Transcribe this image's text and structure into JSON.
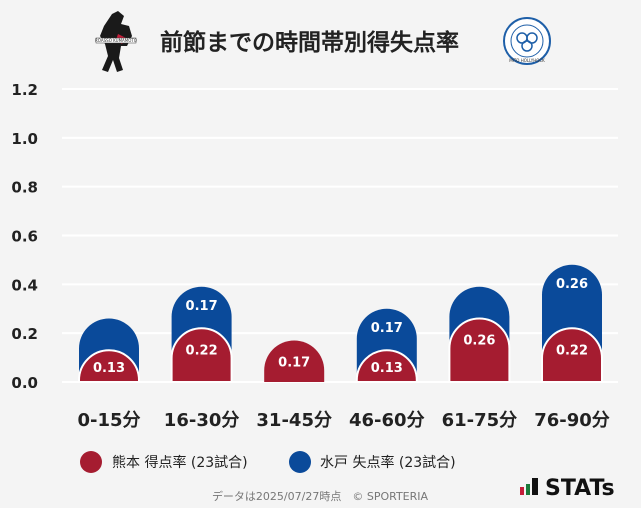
{
  "header": {
    "title": "前節までの時間帯別得失点率",
    "home_logo_text": "ROASSO KUMAMOTO",
    "away_logo_text": "MITO HOLLYHOCK"
  },
  "legend": {
    "home_label": "熊本 得点率 (23試合)",
    "away_label": "水戸 失点率 (23試合)"
  },
  "footer": {
    "note": "データは2025/07/27時点　© SPORTERIA",
    "brand": "STATs"
  },
  "colors": {
    "home": "#a51c30",
    "away": "#0a4a9a",
    "background": "#f4f4f4",
    "grid": "#ffffff"
  },
  "chart_data": {
    "type": "bar",
    "stacked": true,
    "categories": [
      "0-15分",
      "16-30分",
      "31-45分",
      "46-60分",
      "61-75分",
      "76-90分"
    ],
    "series": [
      {
        "name": "熊本 得点率 (23試合)",
        "values": [
          0.13,
          0.22,
          0.17,
          0.13,
          0.26,
          0.22
        ]
      },
      {
        "name": "水戸 失点率 (23試合)",
        "values": [
          0.13,
          0.17,
          0.0,
          0.17,
          0.13,
          0.26
        ]
      }
    ],
    "labels": [
      [
        "0.13",
        "0.22",
        "0.17",
        "0.13",
        "0.26",
        "0.22"
      ],
      [
        "",
        "0.17",
        "",
        "0.17",
        "",
        "0.26"
      ]
    ],
    "yticks": [
      "0.0",
      "0.2",
      "0.4",
      "0.6",
      "0.8",
      "1.0",
      "1.2"
    ],
    "ylim": [
      0,
      1.2
    ],
    "grid": true,
    "legend_position": "bottom-left"
  }
}
